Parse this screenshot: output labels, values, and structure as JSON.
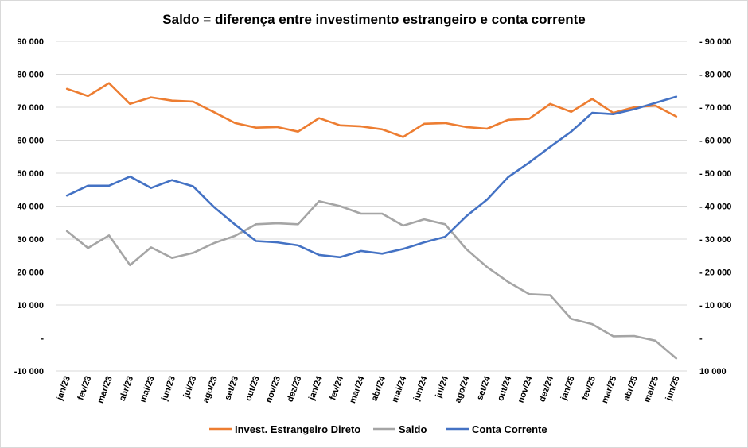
{
  "chart_data": {
    "type": "line",
    "title": "Saldo = diferença entre investimento estrangeiro e conta corrente",
    "xlabel": "",
    "ylabel": "",
    "ylim": [
      -10000,
      90000
    ],
    "y_ticks": [
      -10000,
      0,
      10000,
      20000,
      30000,
      40000,
      50000,
      60000,
      70000,
      80000,
      90000
    ],
    "y_tick_labels_left": [
      "-10 000",
      "-",
      "10 000",
      "20 000",
      "30 000",
      "40 000",
      "50 000",
      "60 000",
      "70 000",
      "80 000",
      "90 000"
    ],
    "y_tick_labels_right": [
      "10 000",
      "-",
      "- 10 000",
      "- 20 000",
      "- 30 000",
      "- 40 000",
      "- 50 000",
      "- 60 000",
      "- 70 000",
      "- 80 000",
      "- 90 000"
    ],
    "grid": true,
    "legend_position": "bottom",
    "categories": [
      "jan/23",
      "fev/23",
      "mar/23",
      "abr/23",
      "mai/23",
      "jun/23",
      "jul/23",
      "ago/23",
      "set/23",
      "out/23",
      "nov/23",
      "dez/23",
      "jan/24",
      "fev/24",
      "mar/24",
      "abr/24",
      "mai/24",
      "jun/24",
      "jul/24",
      "ago/24",
      "set/24",
      "out/24",
      "nov/24",
      "dez/24",
      "jan/25",
      "fev/25",
      "mar/25",
      "abr/25",
      "mai/25",
      "jun/25"
    ],
    "series": [
      {
        "name": "Invest. Estrangeiro Direto",
        "color": "#ED7D31",
        "values": [
          75600,
          73400,
          77300,
          71000,
          73000,
          72000,
          71700,
          68500,
          65200,
          63800,
          64000,
          62600,
          66700,
          64500,
          64200,
          63300,
          61000,
          65000,
          65200,
          64000,
          63500,
          66200,
          66500,
          71000,
          68600,
          72500,
          68300,
          70000,
          70500,
          67200
        ]
      },
      {
        "name": "Saldo",
        "color": "#A5A5A5",
        "values": [
          32400,
          27300,
          31100,
          22100,
          27500,
          24300,
          25800,
          28800,
          31000,
          34500,
          34800,
          34500,
          41500,
          40000,
          37700,
          37700,
          34100,
          36000,
          34500,
          27000,
          21500,
          17000,
          13300,
          13000,
          5800,
          4200,
          500,
          600,
          -800,
          -6200
        ]
      },
      {
        "name": "Conta Corrente",
        "color": "#4472C4",
        "values": [
          43200,
          46200,
          46200,
          49000,
          45500,
          47900,
          46000,
          39700,
          34400,
          29400,
          29000,
          28100,
          25200,
          24500,
          26400,
          25600,
          27000,
          29000,
          30700,
          36900,
          42000,
          48800,
          53200,
          58000,
          62600,
          68300,
          67900,
          69400,
          71300,
          73200
        ]
      }
    ]
  }
}
